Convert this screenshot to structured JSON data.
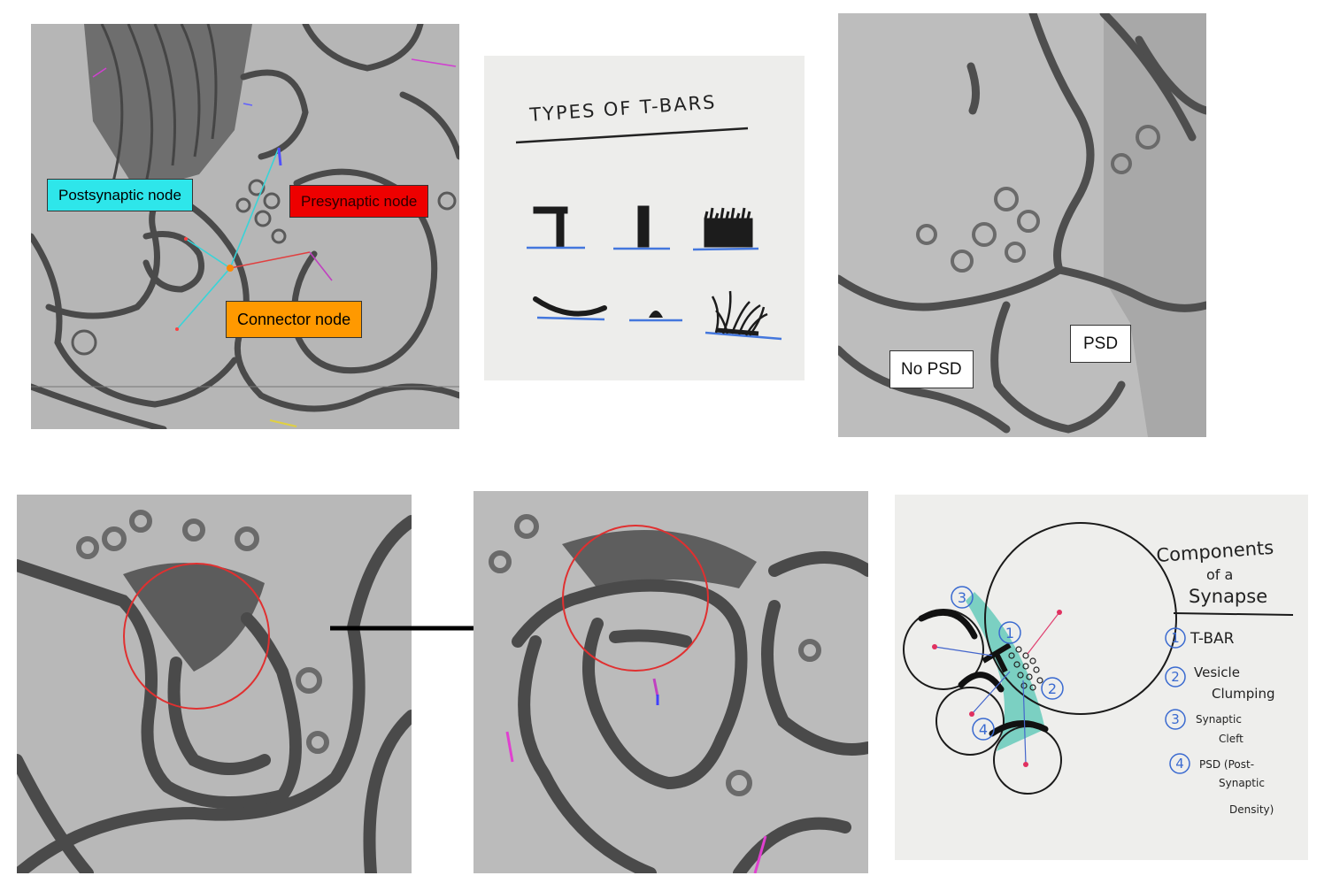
{
  "panel1": {
    "labels": {
      "postsynaptic": "Postsynaptic node",
      "presynaptic": "Presynaptic node",
      "connector": "Connector node"
    },
    "colors": {
      "postsynaptic": "#2ee6ea",
      "presynaptic": "#ee0000",
      "connector": "#ff9900"
    }
  },
  "panel2": {
    "title": "TYPES OF T-BARS"
  },
  "panel3": {
    "labels": {
      "no_psd": "No PSD",
      "psd": "PSD"
    }
  },
  "panel6": {
    "title_line1": "Components",
    "title_line2": "of a",
    "title_line3": "Synapse",
    "items": [
      {
        "num": "1",
        "lines": [
          "T-BAR"
        ]
      },
      {
        "num": "2",
        "lines": [
          "Vesicle",
          "Clumping"
        ]
      },
      {
        "num": "3",
        "lines": [
          "Synaptic",
          "Cleft"
        ]
      },
      {
        "num": "4",
        "lines": [
          "PSD (Post-",
          "Synaptic",
          "Density)"
        ]
      }
    ],
    "diagram_numbers": [
      "1",
      "2",
      "3",
      "4"
    ]
  }
}
